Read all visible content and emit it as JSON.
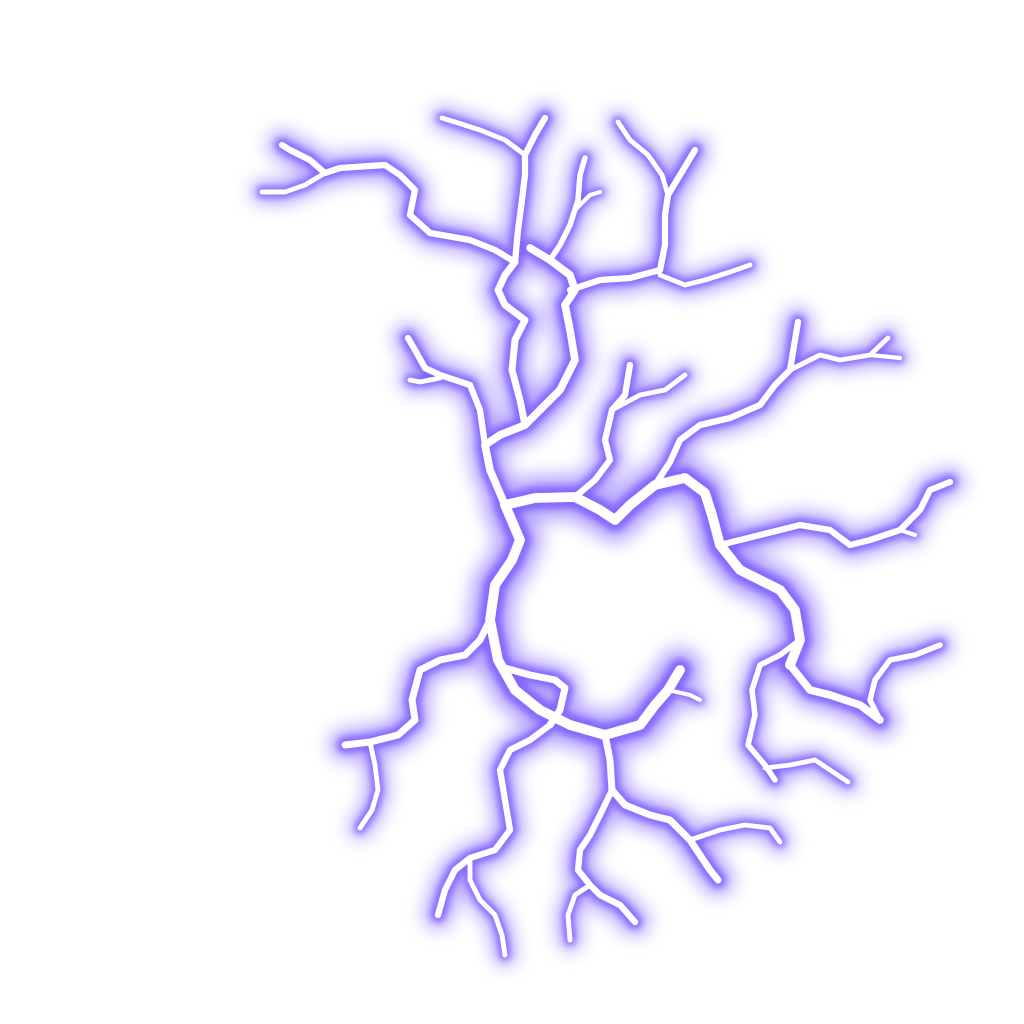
{
  "scene": {
    "subject": "lightning-bolt",
    "background_color": "#ffffff",
    "glow_color": "#7b5cff",
    "core_color": "#ffffff"
  }
}
